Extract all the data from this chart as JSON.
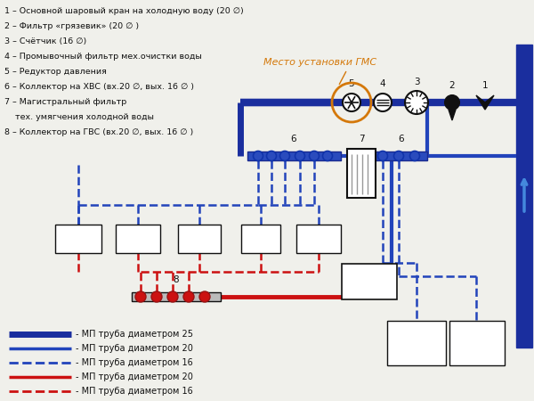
{
  "bg_color": "#f0f0eb",
  "BD": "#1a2e9e",
  "BM": "#2244bb",
  "BD25": "#1a2e9e",
  "RC": "#cc1111",
  "OC": "#d4780a",
  "BK": "#111111",
  "WC": "#ffffff",
  "annotations": [
    "1 – Основной шаровый кран на холодную воду (20 ∅)",
    "2 – Фильтр «грязевик» (20 ∅ )",
    "3 – Счётчик (16 ∅)",
    "4 – Промывочный фильтр мех.очистки воды",
    "5 – Редуктор давления",
    "6 – Коллектор на ХВС (вх.20 ∅, вых. 16 ∅ )",
    "7 – Магистральный фильтр",
    "    тех. умягчения холодной воды",
    "8 – Коллектор на ГВС (вх.20 ∅, вых. 16 ∅ )"
  ],
  "legend_items": [
    {
      "label": "- МП труба диаметром 25",
      "color": "#1a2e9e",
      "lw": 5,
      "ls": "solid"
    },
    {
      "label": "- МП труба диаметром 20",
      "color": "#2244bb",
      "lw": 2.5,
      "ls": "solid"
    },
    {
      "label": "- МП труба диаметром 16",
      "color": "#2244bb",
      "lw": 2,
      "ls": "dashed"
    },
    {
      "label": "- МП труба диаметром 20",
      "color": "#cc1111",
      "lw": 2.5,
      "ls": "solid"
    },
    {
      "label": "- МП труба диаметром 16",
      "color": "#cc1111",
      "lw": 2,
      "ls": "dashed"
    }
  ]
}
